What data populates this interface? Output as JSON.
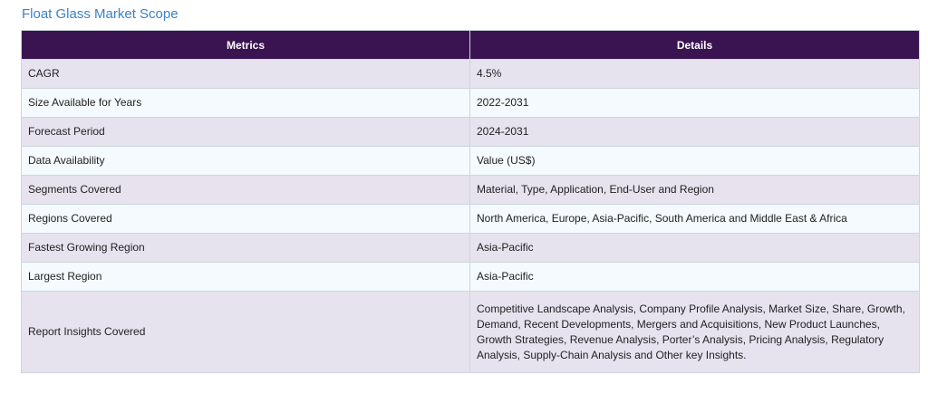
{
  "title": "Float Glass Market Scope",
  "table": {
    "headers": [
      "Metrics",
      "Details"
    ],
    "rows": [
      {
        "metric": "CAGR",
        "detail": "4.5%"
      },
      {
        "metric": "Size Available for Years",
        "detail": "2022-2031"
      },
      {
        "metric": "Forecast Period",
        "detail": "2024-2031"
      },
      {
        "metric": "Data Availability",
        "detail": "Value (US$)"
      },
      {
        "metric": "Segments Covered",
        "detail": "Material, Type, Application, End-User and Region"
      },
      {
        "metric": "Regions Covered",
        "detail": "North America, Europe, Asia-Pacific, South America and Middle East & Africa"
      },
      {
        "metric": "Fastest Growing Region",
        "detail": "Asia-Pacific"
      },
      {
        "metric": "Largest Region",
        "detail": "Asia-Pacific"
      },
      {
        "metric": "Report Insights Covered",
        "detail": "Competitive Landscape Analysis, Company Profile Analysis, Market Size, Share, Growth, Demand, Recent Developments, Mergers and Acquisitions, New Product Launches, Growth Strategies, Revenue Analysis, Porter’s Analysis, Pricing Analysis, Regulatory Analysis, Supply-Chain Analysis and Other key Insights."
      }
    ]
  },
  "colors": {
    "title": "#3b82c4",
    "header_bg": "#3a1450",
    "row_odd": "#e6e2ee",
    "row_even": "#f4fafd"
  }
}
